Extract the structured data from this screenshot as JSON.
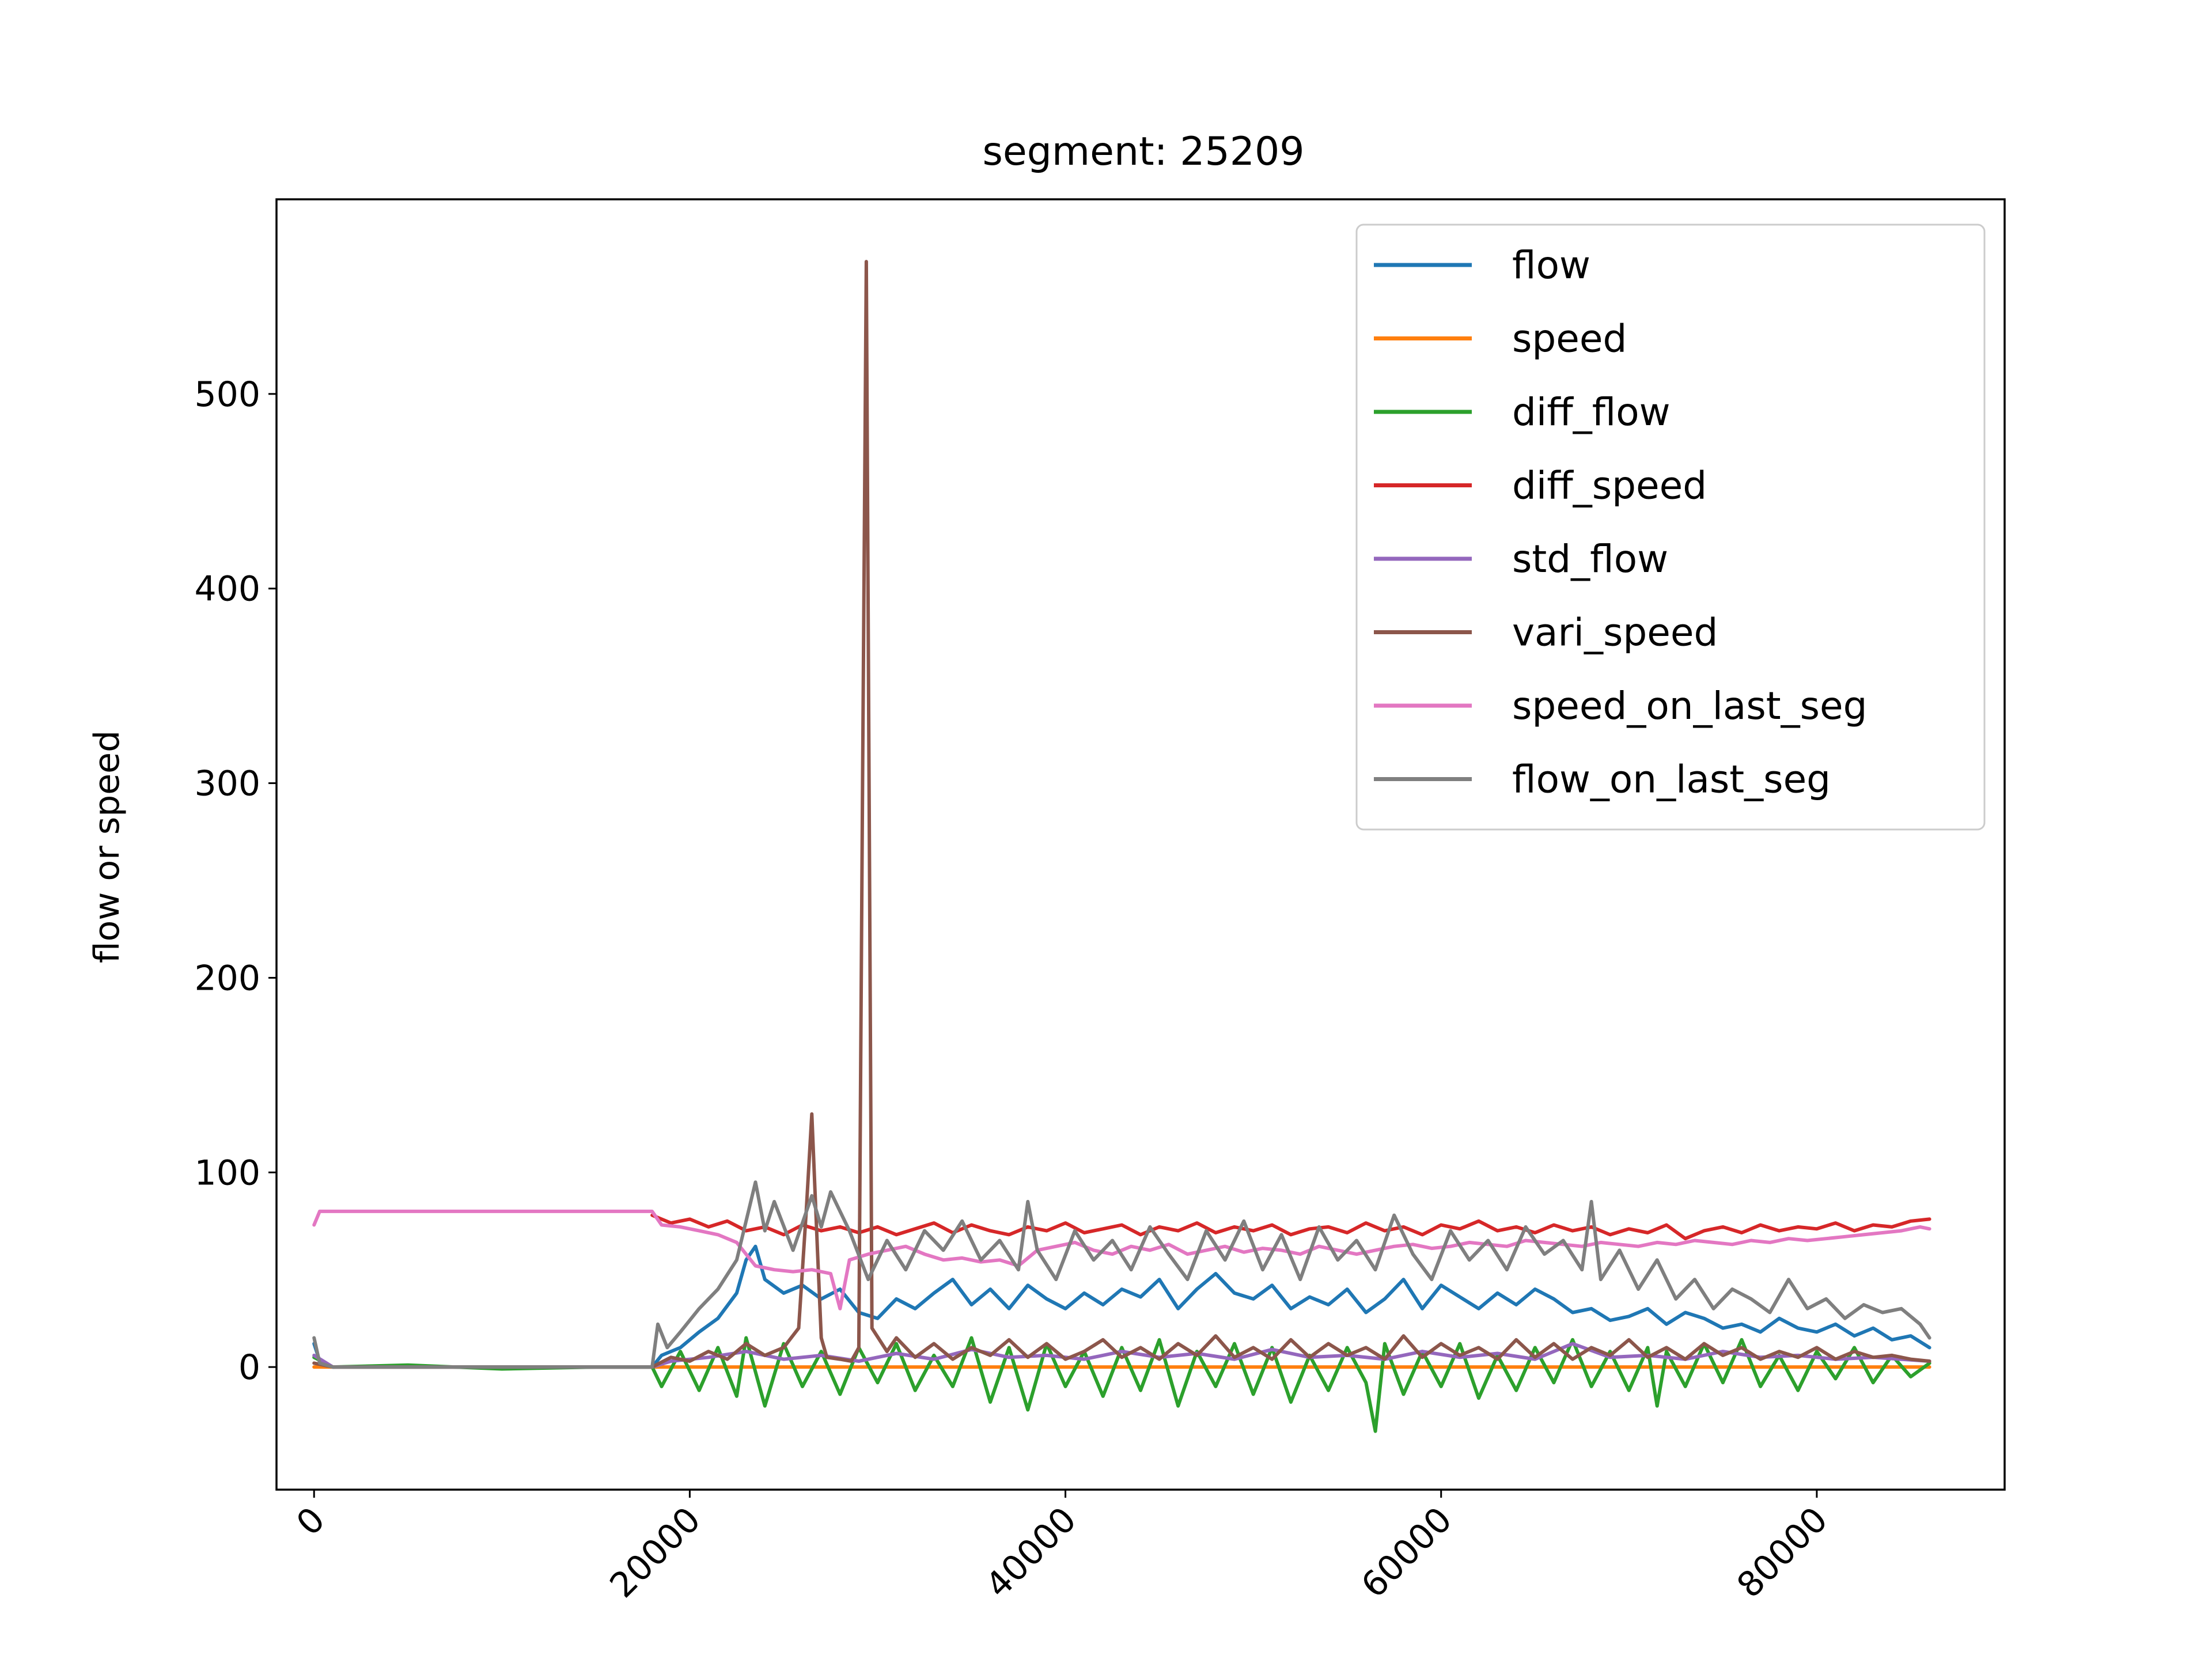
{
  "chart_data": {
    "type": "line",
    "title": "segment: 25209",
    "xlabel": "",
    "ylabel": "flow or speed",
    "xlim": [
      -2000,
      90000
    ],
    "ylim": [
      -63,
      600
    ],
    "xticks": [
      0,
      20000,
      40000,
      60000,
      80000
    ],
    "yticks": [
      0,
      100,
      200,
      300,
      400,
      500
    ],
    "grid": false,
    "legend_position": "top-right",
    "series": [
      {
        "name": "flow",
        "color": "#1f77b4",
        "x": [
          0,
          300,
          1000,
          5000,
          10000,
          15000,
          17999,
          18500,
          19500,
          20500,
          21500,
          22500,
          23000,
          23500,
          24000,
          25000,
          26000,
          27000,
          28000,
          29000,
          30000,
          31000,
          32000,
          33000,
          34000,
          35000,
          36000,
          37000,
          38000,
          39000,
          40000,
          41000,
          42000,
          43000,
          44000,
          45000,
          46000,
          47000,
          48000,
          49000,
          50000,
          51000,
          52000,
          53000,
          54000,
          55000,
          56000,
          57000,
          58000,
          59000,
          60000,
          61000,
          62000,
          63000,
          64000,
          65000,
          66000,
          67000,
          68000,
          69000,
          70000,
          71000,
          72000,
          73000,
          74000,
          75000,
          76000,
          77000,
          78000,
          79000,
          80000,
          81000,
          82000,
          83000,
          84000,
          85000,
          86000
        ],
        "y": [
          12,
          3,
          0,
          0,
          0,
          0,
          0,
          6,
          10,
          18,
          25,
          38,
          55,
          62,
          45,
          38,
          42,
          35,
          40,
          28,
          25,
          35,
          30,
          38,
          45,
          32,
          40,
          30,
          42,
          35,
          30,
          38,
          32,
          40,
          36,
          45,
          30,
          40,
          48,
          38,
          35,
          42,
          30,
          36,
          32,
          40,
          28,
          35,
          45,
          30,
          42,
          36,
          30,
          38,
          32,
          40,
          35,
          28,
          30,
          24,
          26,
          30,
          22,
          28,
          25,
          20,
          22,
          18,
          25,
          20,
          18,
          22,
          16,
          20,
          14,
          16,
          10
        ]
      },
      {
        "name": "speed",
        "color": "#ff7f0e",
        "x": [
          0,
          86000
        ],
        "y": [
          0,
          0
        ]
      },
      {
        "name": "diff_flow",
        "color": "#2ca02c",
        "x": [
          0,
          1000,
          5000,
          10000,
          15000,
          17999,
          18500,
          19500,
          20500,
          21500,
          22500,
          23000,
          24000,
          25000,
          26000,
          27000,
          28000,
          29000,
          30000,
          31000,
          32000,
          33000,
          34000,
          35000,
          36000,
          37000,
          38000,
          39000,
          40000,
          41000,
          42000,
          43000,
          44000,
          45000,
          46000,
          47000,
          48000,
          49000,
          50000,
          51000,
          52000,
          53000,
          54000,
          55000,
          56000,
          56500,
          57000,
          58000,
          59000,
          60000,
          61000,
          62000,
          63000,
          64000,
          65000,
          66000,
          67000,
          68000,
          69000,
          70000,
          71000,
          71500,
          72000,
          73000,
          74000,
          75000,
          76000,
          77000,
          78000,
          79000,
          80000,
          81000,
          82000,
          83000,
          84000,
          85000,
          86000
        ],
        "y": [
          5,
          0,
          1,
          -1,
          0,
          0,
          -10,
          8,
          -12,
          10,
          -15,
          15,
          -20,
          12,
          -10,
          8,
          -14,
          10,
          -8,
          12,
          -12,
          6,
          -10,
          15,
          -18,
          10,
          -22,
          12,
          -10,
          8,
          -15,
          10,
          -12,
          14,
          -20,
          8,
          -10,
          12,
          -14,
          10,
          -18,
          6,
          -12,
          10,
          -8,
          -33,
          12,
          -14,
          8,
          -10,
          12,
          -16,
          6,
          -12,
          10,
          -8,
          14,
          -10,
          8,
          -12,
          10,
          -20,
          8,
          -10,
          12,
          -8,
          14,
          -10,
          6,
          -12,
          8,
          -6,
          10,
          -8,
          6,
          -5,
          2
        ]
      },
      {
        "name": "diff_speed",
        "color": "#d62728",
        "x": [
          18000,
          19000,
          20000,
          21000,
          22000,
          23000,
          24000,
          25000,
          26000,
          27000,
          28000,
          29000,
          30000,
          31000,
          32000,
          33000,
          34000,
          35000,
          36000,
          37000,
          38000,
          39000,
          40000,
          41000,
          42000,
          43000,
          44000,
          45000,
          46000,
          47000,
          48000,
          49000,
          50000,
          51000,
          52000,
          53000,
          54000,
          55000,
          56000,
          57000,
          58000,
          59000,
          60000,
          61000,
          62000,
          63000,
          64000,
          65000,
          66000,
          67000,
          68000,
          69000,
          70000,
          71000,
          72000,
          73000,
          74000,
          75000,
          76000,
          77000,
          78000,
          79000,
          80000,
          81000,
          82000,
          83000,
          84000,
          85000,
          86000
        ],
        "y": [
          78,
          74,
          76,
          72,
          75,
          70,
          72,
          68,
          73,
          70,
          72,
          69,
          72,
          68,
          71,
          74,
          69,
          73,
          70,
          68,
          72,
          70,
          74,
          69,
          71,
          73,
          68,
          72,
          70,
          74,
          69,
          72,
          70,
          73,
          68,
          71,
          72,
          69,
          74,
          70,
          72,
          68,
          73,
          71,
          75,
          70,
          72,
          69,
          73,
          70,
          72,
          68,
          71,
          69,
          73,
          66,
          70,
          72,
          69,
          73,
          70,
          72,
          71,
          74,
          70,
          73,
          72,
          75,
          76
        ]
      },
      {
        "name": "std_flow",
        "color": "#9467bd",
        "x": [
          0,
          1000,
          10000,
          17999,
          19000,
          21000,
          23000,
          25000,
          27000,
          29000,
          31000,
          33000,
          35000,
          37000,
          39000,
          41000,
          43000,
          45000,
          47000,
          49000,
          51000,
          53000,
          55000,
          57000,
          59000,
          61000,
          63000,
          65000,
          67000,
          69000,
          71000,
          73000,
          75000,
          77000,
          79000,
          81000,
          83000,
          86000
        ],
        "y": [
          6,
          0,
          0,
          0,
          3,
          5,
          8,
          4,
          6,
          3,
          7,
          4,
          9,
          5,
          6,
          4,
          8,
          5,
          7,
          4,
          9,
          5,
          6,
          4,
          8,
          5,
          7,
          4,
          12,
          5,
          6,
          4,
          8,
          5,
          6,
          4,
          5,
          3
        ]
      },
      {
        "name": "vari_speed",
        "color": "#8c564b",
        "x": [
          0,
          1000,
          10000,
          17999,
          19000,
          20000,
          21000,
          22000,
          23000,
          24000,
          25000,
          25800,
          26200,
          26500,
          26800,
          27000,
          27300,
          28000,
          28600,
          29000,
          29200,
          29400,
          29700,
          30500,
          31000,
          32000,
          33000,
          34000,
          35000,
          36000,
          37000,
          38000,
          39000,
          40000,
          41000,
          42000,
          43000,
          44000,
          45000,
          46000,
          47000,
          48000,
          49000,
          50000,
          51000,
          52000,
          53000,
          54000,
          55000,
          56000,
          57000,
          58000,
          59000,
          60000,
          61000,
          62000,
          63000,
          64000,
          65000,
          66000,
          67000,
          68000,
          69000,
          70000,
          71000,
          72000,
          73000,
          74000,
          75000,
          76000,
          77000,
          78000,
          79000,
          80000,
          81000,
          82000,
          83000,
          84000,
          85000,
          86000
        ],
        "y": [
          2,
          0,
          0,
          0,
          5,
          3,
          8,
          4,
          12,
          6,
          10,
          20,
          80,
          130,
          60,
          15,
          5,
          4,
          3,
          10,
          300,
          568,
          20,
          8,
          15,
          5,
          12,
          4,
          10,
          6,
          14,
          5,
          12,
          4,
          8,
          14,
          5,
          10,
          4,
          12,
          6,
          16,
          5,
          10,
          4,
          14,
          5,
          12,
          6,
          10,
          4,
          16,
          5,
          12,
          6,
          10,
          4,
          14,
          5,
          12,
          4,
          10,
          6,
          14,
          5,
          10,
          4,
          12,
          6,
          10,
          4,
          8,
          5,
          10,
          4,
          8,
          5,
          6,
          4,
          3
        ]
      },
      {
        "name": "speed_on_last_seg",
        "color": "#e377c2",
        "x": [
          0,
          300,
          600,
          10000,
          17999,
          18500,
          19500,
          20500,
          21500,
          22500,
          23000,
          23500,
          24500,
          25500,
          26500,
          27500,
          28000,
          28500,
          29500,
          30500,
          31500,
          32500,
          33500,
          34500,
          35500,
          36500,
          37500,
          38500,
          39500,
          40500,
          41500,
          42500,
          43500,
          44500,
          45500,
          46500,
          47500,
          48500,
          49500,
          50500,
          51500,
          52500,
          53500,
          54500,
          55500,
          56500,
          57500,
          58500,
          59500,
          60500,
          61500,
          62500,
          63500,
          64500,
          65500,
          66500,
          67500,
          68500,
          69500,
          70500,
          71500,
          72500,
          73500,
          74500,
          75500,
          76500,
          77500,
          78500,
          79500,
          80500,
          81500,
          82500,
          83500,
          84500,
          85500,
          86000
        ],
        "y": [
          73,
          80,
          80,
          80,
          80,
          73,
          72,
          70,
          68,
          64,
          58,
          52,
          50,
          49,
          50,
          48,
          30,
          55,
          58,
          60,
          62,
          58,
          55,
          56,
          54,
          55,
          52,
          60,
          62,
          64,
          60,
          58,
          62,
          60,
          63,
          58,
          60,
          62,
          59,
          61,
          60,
          58,
          62,
          60,
          58,
          60,
          62,
          63,
          61,
          62,
          64,
          63,
          62,
          65,
          64,
          63,
          62,
          64,
          63,
          62,
          64,
          63,
          65,
          64,
          63,
          65,
          64,
          66,
          65,
          66,
          67,
          68,
          69,
          70,
          72,
          71
        ]
      },
      {
        "name": "flow_on_last_seg",
        "color": "#7f7f7f",
        "x": [
          0,
          300,
          1000,
          10000,
          17999,
          18300,
          18800,
          19500,
          20500,
          21500,
          22500,
          23000,
          23500,
          24000,
          24500,
          25500,
          26500,
          27000,
          27500,
          28500,
          29500,
          30500,
          31500,
          32500,
          33500,
          34500,
          35500,
          36500,
          37500,
          38000,
          38500,
          39500,
          40500,
          41500,
          42500,
          43500,
          44500,
          45500,
          46500,
          47500,
          48500,
          49500,
          50500,
          51500,
          52500,
          53500,
          54500,
          55500,
          56500,
          57500,
          58500,
          59500,
          60500,
          61500,
          62500,
          63500,
          64500,
          65500,
          66500,
          67500,
          68000,
          68500,
          69500,
          70500,
          71500,
          72500,
          73500,
          74500,
          75500,
          76500,
          77500,
          78500,
          79500,
          80500,
          81500,
          82500,
          83500,
          84500,
          85500,
          86000
        ],
        "y": [
          15,
          2,
          0,
          0,
          0,
          22,
          10,
          18,
          30,
          40,
          55,
          75,
          95,
          70,
          85,
          60,
          88,
          72,
          90,
          70,
          45,
          65,
          50,
          70,
          60,
          75,
          55,
          65,
          50,
          85,
          60,
          45,
          70,
          55,
          65,
          50,
          72,
          58,
          45,
          70,
          55,
          75,
          50,
          68,
          45,
          72,
          55,
          65,
          50,
          78,
          58,
          45,
          70,
          55,
          65,
          50,
          72,
          58,
          65,
          50,
          85,
          45,
          60,
          40,
          55,
          35,
          45,
          30,
          40,
          35,
          28,
          45,
          30,
          35,
          25,
          32,
          28,
          30,
          22,
          15
        ]
      }
    ]
  }
}
